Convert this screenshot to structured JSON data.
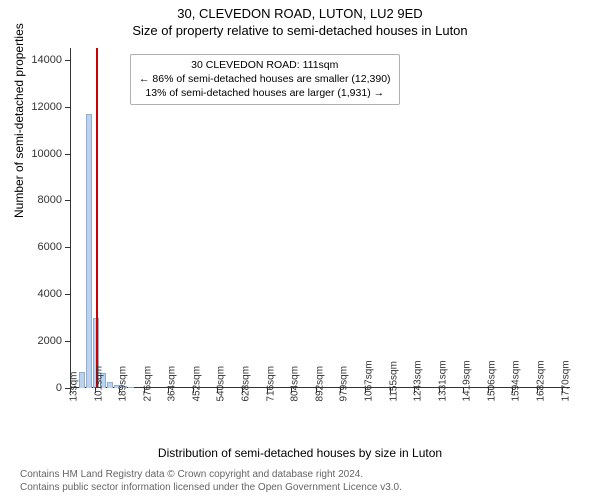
{
  "titles": {
    "address": "30, CLEVEDON ROAD, LUTON, LU2 9ED",
    "subtitle": "Size of property relative to semi-detached houses in Luton"
  },
  "axes": {
    "ylabel": "Number of semi-detached properties",
    "xlabel": "Distribution of semi-detached houses by size in Luton"
  },
  "chart": {
    "type": "histogram",
    "background_color": "#ffffff",
    "bar_color": "#bcd2ee",
    "bar_border_color": "#8faed2",
    "marker_color": "#cc0000",
    "yticks": [
      0,
      2000,
      4000,
      6000,
      8000,
      10000,
      12000,
      14000
    ],
    "ylim": [
      0,
      14500
    ],
    "x_range_sqm": [
      13,
      1800
    ],
    "xticks_sqm": [
      13,
      101,
      189,
      276,
      364,
      452,
      540,
      628,
      716,
      804,
      892,
      979,
      1067,
      1155,
      1243,
      1331,
      1419,
      1506,
      1594,
      1682,
      1770
    ],
    "marker_sqm": 111,
    "bars": [
      {
        "x_sqm": 57,
        "value": 700
      },
      {
        "x_sqm": 80,
        "value": 11700
      },
      {
        "x_sqm": 105,
        "value": 3000
      },
      {
        "x_sqm": 130,
        "value": 650
      },
      {
        "x_sqm": 155,
        "value": 250
      },
      {
        "x_sqm": 180,
        "value": 130
      },
      {
        "x_sqm": 205,
        "value": 80
      },
      {
        "x_sqm": 230,
        "value": 50
      }
    ],
    "bar_width_sqm": 22
  },
  "info_box": {
    "line1": "30 CLEVEDON ROAD: 111sqm",
    "line2": "← 86% of semi-detached houses are smaller (12,390)",
    "line3": "13% of semi-detached houses are larger (1,931) →"
  },
  "footer": {
    "line1": "Contains HM Land Registry data © Crown copyright and database right 2024.",
    "line2": "Contains public sector information licensed under the Open Government Licence v3.0."
  },
  "style": {
    "title_fontsize": 13,
    "label_fontsize": 12,
    "tick_fontsize": 11,
    "footer_fontsize": 10,
    "axis_color": "#333333"
  }
}
